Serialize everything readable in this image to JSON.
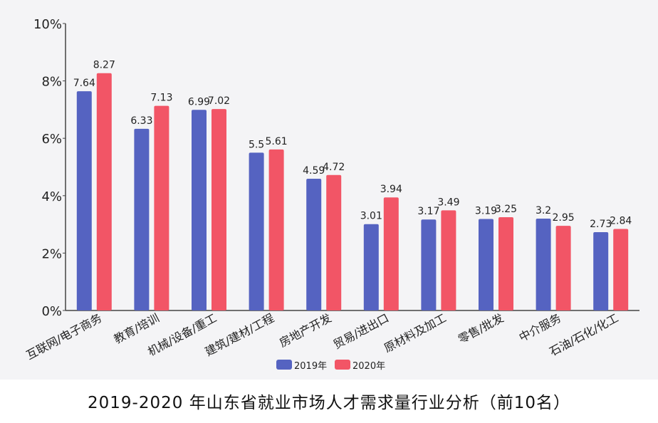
{
  "chart_data": {
    "type": "bar",
    "title": "2019-2020 年山东省就业市场人才需求量行业分析（前10名）",
    "categories": [
      "互联网/电子商务",
      "教育/培训",
      "机械/设备/重工",
      "建筑/建材/工程",
      "房地产开发",
      "贸易/进出口",
      "原材料及加工",
      "零售/批发",
      "中介服务",
      "石油/石化/化工"
    ],
    "series": [
      {
        "name": "2019年",
        "color": "#5563c1",
        "values": [
          7.64,
          6.33,
          6.99,
          5.5,
          4.59,
          3.01,
          3.17,
          3.19,
          3.2,
          2.73
        ]
      },
      {
        "name": "2020年",
        "color": "#f25566",
        "values": [
          8.27,
          7.13,
          7.02,
          5.61,
          4.72,
          3.94,
          3.49,
          3.25,
          2.95,
          2.84
        ]
      }
    ],
    "ylim": [
      0,
      10
    ],
    "yticks": [
      "0%",
      "2%",
      "4%",
      "6%",
      "8%",
      "10%"
    ],
    "grid": false,
    "legend": "bottom",
    "xlabel": "",
    "ylabel": ""
  }
}
